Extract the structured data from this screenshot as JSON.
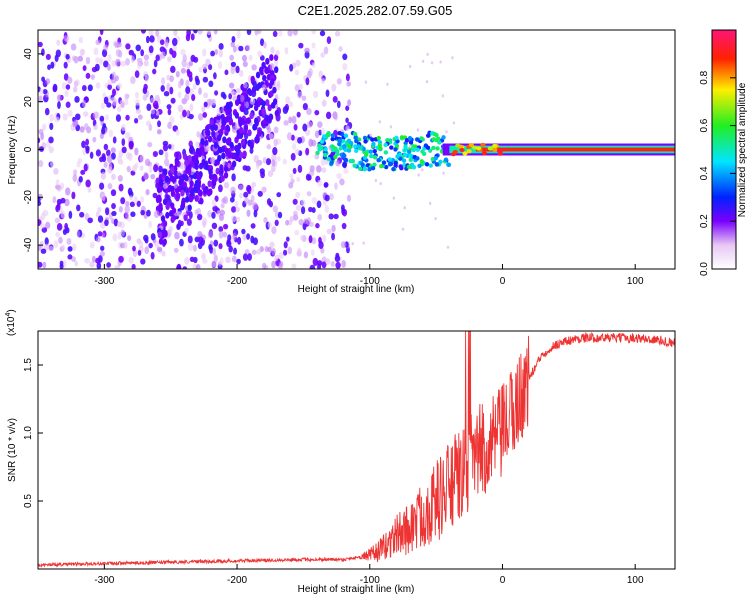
{
  "title": "C2E1.2025.282.07.59.G05",
  "chart_data": [
    {
      "type": "heatmap",
      "xlabel": "Height of straight line (km)",
      "ylabel": "Frequency (Hz)",
      "xlim": [
        -350,
        130
      ],
      "ylim": [
        -50,
        50
      ],
      "x_ticks": [
        -300,
        -200,
        -100,
        0,
        100
      ],
      "y_ticks": [
        -40,
        -20,
        0,
        20,
        40
      ],
      "colorbar": {
        "label": "Normalized spectral amplitude",
        "range": [
          0,
          1
        ],
        "ticks": [
          0.0,
          0.2,
          0.4,
          0.6,
          0.8
        ]
      },
      "regions": [
        {
          "x_range": [
            -350,
            -120
          ],
          "freq_range": [
            -50,
            50
          ],
          "amplitude": "low (0.05-0.25), scattered"
        },
        {
          "x_range": [
            -140,
            -40
          ],
          "freq_range": [
            -8,
            8
          ],
          "amplitude": "medium (0.3-0.6), fragmented ridge"
        },
        {
          "x_range": [
            -40,
            130
          ],
          "freq_range": [
            -1,
            1
          ],
          "amplitude": "high (0.8-1.0), steady ridge at 0 Hz"
        }
      ]
    },
    {
      "type": "line",
      "xlabel": "Height of straight line (km)",
      "ylabel": "SNR (10 * v/v)",
      "y_multiplier": "(x10",
      "y_multiplier_exp": "4",
      "xlim": [
        -350,
        130
      ],
      "ylim": [
        0,
        1.75
      ],
      "x_ticks": [
        -300,
        -200,
        -100,
        0,
        100
      ],
      "y_ticks": [
        0.5,
        1.0,
        1.5
      ],
      "color": "#ee3333",
      "series": [
        {
          "name": "SNR",
          "x": [
            -350,
            -300,
            -250,
            -200,
            -150,
            -120,
            -100,
            -90,
            -80,
            -70,
            -60,
            -50,
            -40,
            -30,
            -20,
            -10,
            0,
            10,
            20,
            30,
            40,
            50,
            60,
            80,
            100,
            120,
            130
          ],
          "y": [
            0.03,
            0.04,
            0.05,
            0.06,
            0.07,
            0.07,
            0.1,
            0.15,
            0.25,
            0.3,
            0.4,
            0.5,
            0.6,
            0.7,
            0.85,
            0.9,
            1.0,
            1.2,
            1.4,
            1.58,
            1.65,
            1.68,
            1.7,
            1.7,
            1.7,
            1.68,
            1.66
          ]
        }
      ]
    }
  ]
}
